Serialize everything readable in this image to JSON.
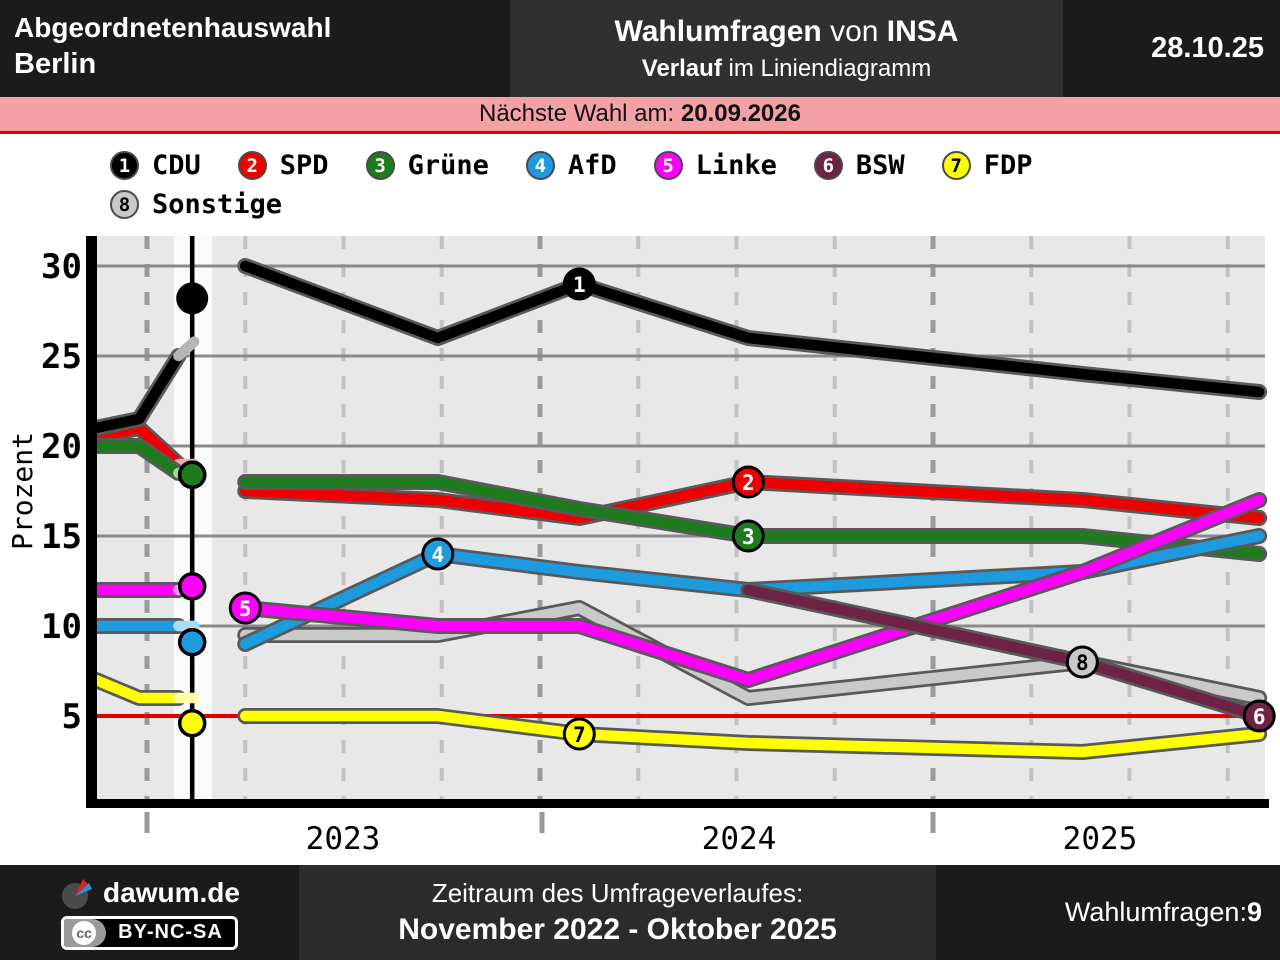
{
  "header": {
    "election_line1": "Abgeordnetenhauswahl",
    "election_line2": "Berlin",
    "title_bold1": "Wahlumfragen",
    "title_mid": " von ",
    "title_bold2": "INSA",
    "subtitle_bold": "Verlauf",
    "subtitle_rest": " im Liniendiagramm",
    "date": "28.10.25"
  },
  "banner": {
    "label": "Nächste Wahl am: ",
    "date": "20.09.2026"
  },
  "legend": [
    {
      "num": "1",
      "label": "CDU",
      "color": "#000000",
      "num_color": "#ffffff"
    },
    {
      "num": "2",
      "label": "SPD",
      "color": "#ee0000",
      "num_color": "#ffffff"
    },
    {
      "num": "3",
      "label": "Grüne",
      "color": "#1e7c1e",
      "num_color": "#ffffff"
    },
    {
      "num": "4",
      "label": "AfD",
      "color": "#1e9ade",
      "num_color": "#ffffff"
    },
    {
      "num": "5",
      "label": "Linke",
      "color": "#ff00ff",
      "num_color": "#ffffff"
    },
    {
      "num": "6",
      "label": "BSW",
      "color": "#6e2244",
      "num_color": "#ffffff"
    },
    {
      "num": "7",
      "label": "FDP",
      "color": "#ffff00",
      "num_color": "#000000"
    },
    {
      "num": "8",
      "label": "Sonstige",
      "color": "#c9c9c9",
      "num_color": "#000000"
    }
  ],
  "chart_data": {
    "type": "line",
    "title": "Wahlumfragen von INSA - Verlauf im Liniendiagramm (Abgeordnetenhauswahl Berlin)",
    "ylabel": "Prozent",
    "y_ticks": [
      30,
      25,
      20,
      15,
      10,
      5
    ],
    "x_ticks": [
      "2023",
      "2024",
      "2025"
    ],
    "ylim": [
      0,
      31.5
    ],
    "grid": true,
    "five_percent_line": {
      "value": 5,
      "color": "#e10000"
    },
    "poll_t": {
      "pre": [
        2022.87,
        2022.98,
        2023.08
      ],
      "post": [
        2023.25,
        2023.74,
        2024.1,
        2024.53,
        2025.38,
        2025.83
      ]
    },
    "election": {
      "t": 2023.115,
      "results": [
        {
          "party": "SPD",
          "value": 18.4
        },
        {
          "party": "Grüne",
          "value": 18.4
        },
        {
          "party": "Linke",
          "value": 12.2
        },
        {
          "party": "AfD",
          "value": 9.1
        },
        {
          "party": "FDP",
          "value": 4.6
        },
        {
          "party": "CDU",
          "value": 28.2
        }
      ]
    },
    "series": [
      {
        "name": "Sonstige",
        "num": "8",
        "color": "#c9c9c9",
        "faded": "",
        "pre": [],
        "post": [
          9.5,
          9.5,
          11,
          6,
          8,
          6
        ],
        "badge": {
          "t": 2025.38,
          "v": 8
        },
        "badge_text": "#000000"
      },
      {
        "name": "FDP",
        "num": "7",
        "color": "#ffff00",
        "faded": "#ffffa8",
        "pre": [
          7,
          6,
          6
        ],
        "post": [
          5,
          5,
          4,
          3.5,
          3,
          4
        ],
        "badge": {
          "t": 2024.1,
          "v": 4
        },
        "badge_text": "#000000"
      },
      {
        "name": "SPD",
        "num": "2",
        "color": "#ee0000",
        "faded": "#f7a8ac",
        "pre": [
          20.5,
          21,
          19
        ],
        "post": [
          17.5,
          17,
          16,
          18,
          17,
          16
        ],
        "badge": {
          "t": 2024.53,
          "v": 18
        },
        "badge_text": "#ffffff"
      },
      {
        "name": "Grüne",
        "num": "3",
        "color": "#1e7c1e",
        "faded": "#a8cfa8",
        "pre": [
          20,
          20,
          18.5
        ],
        "post": [
          18,
          18,
          16.5,
          15,
          15,
          14
        ],
        "badge": {
          "t": 2024.53,
          "v": 15
        },
        "badge_text": "#ffffff"
      },
      {
        "name": "AfD",
        "num": "4",
        "color": "#1e9ade",
        "faded": "#aadcf2",
        "pre": [
          10,
          10,
          10
        ],
        "post": [
          9,
          14,
          13,
          12,
          13,
          15
        ],
        "badge": {
          "t": 2023.74,
          "v": 14
        },
        "badge_text": "#ffffff"
      },
      {
        "name": "Linke",
        "num": "5",
        "color": "#ff00ff",
        "faded": "#ff9eff",
        "pre": [
          12,
          12,
          12
        ],
        "post": [
          11,
          10,
          10,
          7,
          13,
          17
        ],
        "badge": {
          "t": 2023.25,
          "v": 11
        },
        "badge_text": "#ffffff"
      },
      {
        "name": "BSW",
        "num": "6",
        "color": "#6e2244",
        "faded": "",
        "pre": [],
        "post": [
          null,
          null,
          null,
          12,
          8,
          5
        ],
        "badge": {
          "t": 2025.83,
          "v": 5
        },
        "badge_text": "#ffffff"
      },
      {
        "name": "CDU",
        "num": "1",
        "color": "#000000",
        "faded": "#b5b5b5",
        "pre": [
          21,
          21.5,
          25
        ],
        "post": [
          30,
          26,
          29,
          26,
          24,
          23
        ],
        "badge": {
          "t": 2024.1,
          "v": 29
        },
        "badge_text": "#ffffff"
      }
    ]
  },
  "footer": {
    "brand": "dawum.de",
    "license": "BY-NC-SA",
    "cc": "cc",
    "period_label": "Zeitraum des Umfrageverlaufes:",
    "period_value": "November 2022 - Oktober 2025",
    "count_label": "Wahlumfragen: ",
    "count_value": "9"
  }
}
